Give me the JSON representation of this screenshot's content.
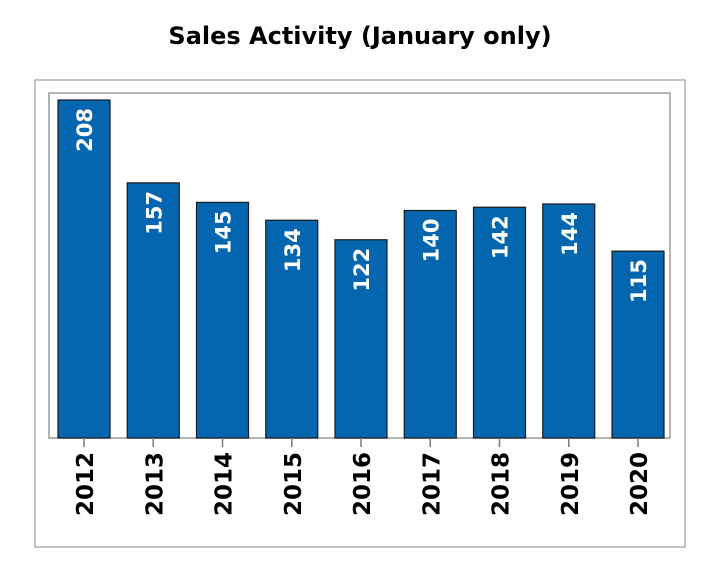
{
  "chart_data": {
    "type": "bar",
    "title": "Sales Activity (January only)",
    "categories": [
      "2012",
      "2013",
      "2014",
      "2015",
      "2016",
      "2017",
      "2018",
      "2019",
      "2020"
    ],
    "values": [
      208,
      157,
      145,
      134,
      122,
      140,
      142,
      144,
      115
    ],
    "data_labels": [
      "208",
      "157",
      "145",
      "134",
      "122",
      "140",
      "142",
      "144",
      "115"
    ],
    "xlabel": "",
    "ylabel": "",
    "ylim": [
      0,
      208
    ],
    "grid": false,
    "legend": "none",
    "bar_color": "#0566b0",
    "label_color": "#ffffff",
    "label_orientation": "vertical",
    "tick_label_orientation": "vertical"
  }
}
